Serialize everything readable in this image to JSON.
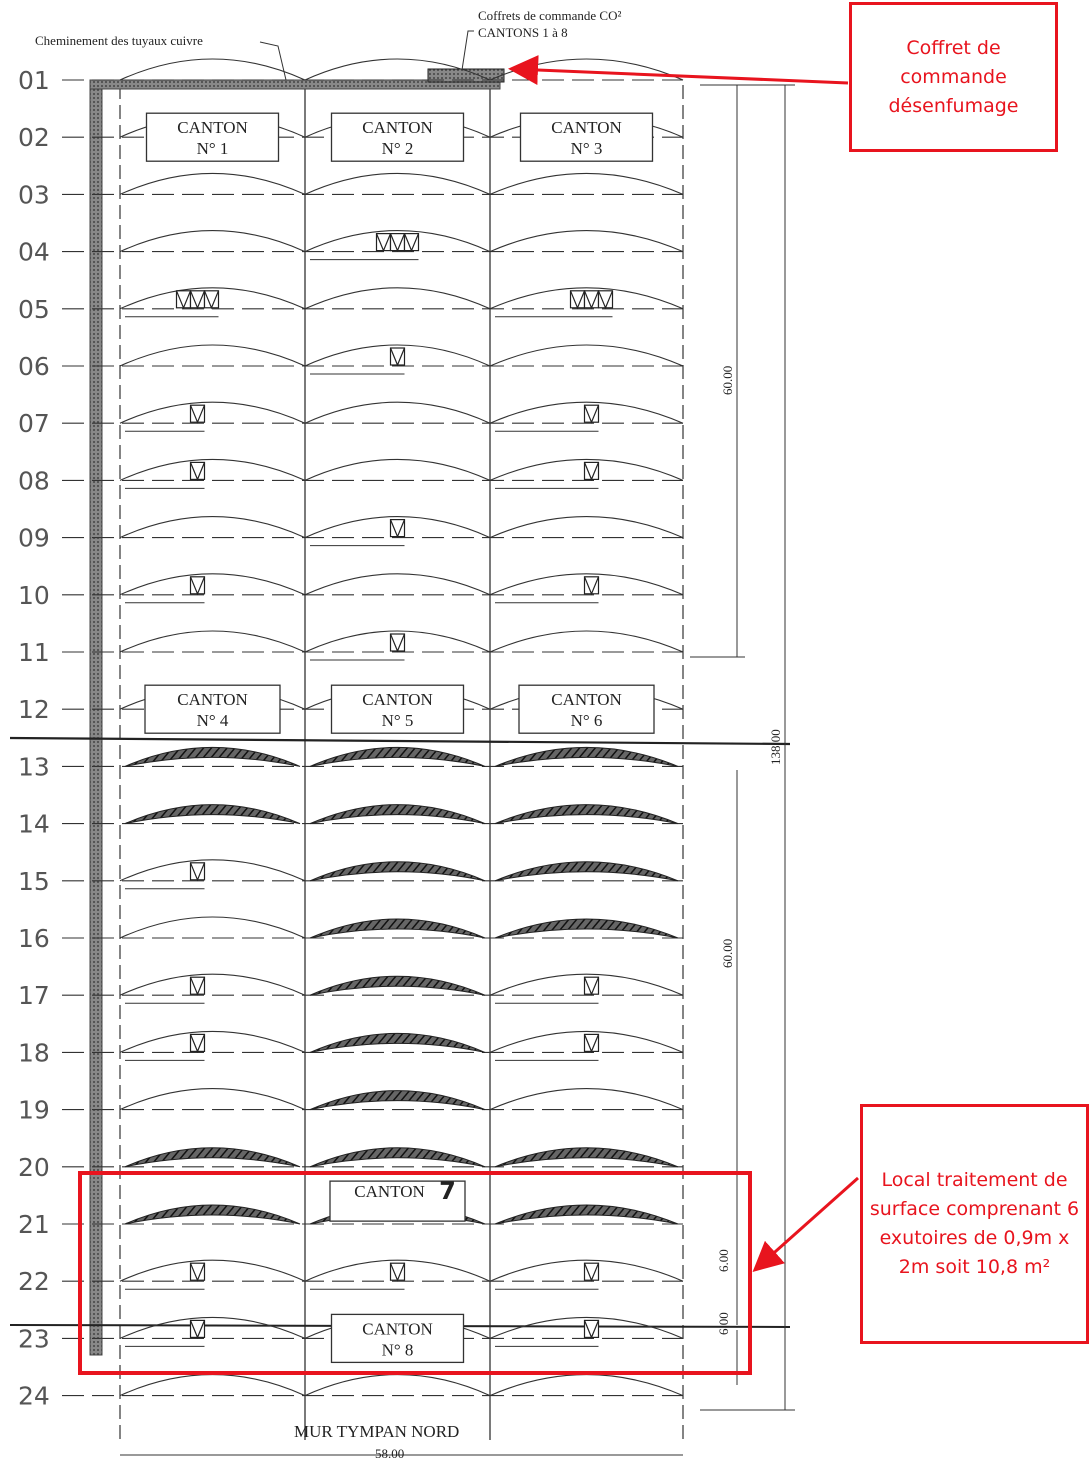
{
  "top_labels": {
    "copper_route": "Cheminement des tuyaux cuivre",
    "control_boxes_line1": "Coffrets de commande CO²",
    "control_boxes_line2": "CANTONS 1 à 8"
  },
  "rows": [
    "01",
    "02",
    "03",
    "04",
    "05",
    "06",
    "07",
    "08",
    "09",
    "10",
    "11",
    "12",
    "13",
    "14",
    "15",
    "16",
    "17",
    "18",
    "19",
    "20",
    "21",
    "22",
    "23",
    "24"
  ],
  "cantons": [
    {
      "title": "CANTON",
      "number": "N° 1"
    },
    {
      "title": "CANTON",
      "number": "N° 2"
    },
    {
      "title": "CANTON",
      "number": "N° 3"
    },
    {
      "title": "CANTON",
      "number": "N° 4"
    },
    {
      "title": "CANTON",
      "number": "N° 5"
    },
    {
      "title": "CANTON",
      "number": "N° 6"
    },
    {
      "title": "CANTON",
      "number": "7"
    },
    {
      "title": "CANTON",
      "number": "N° 8"
    }
  ],
  "dimensions": {
    "upper_span": "60.00",
    "total_length": "138.00",
    "lower_span": "60.00",
    "bay_a": "6.00",
    "bay_b": "6.00",
    "width": "58.00"
  },
  "bottom_label": "MUR TYMPAN NORD",
  "callouts": {
    "control_box": "Coffret de commande désenfumage",
    "surface_treatment": "Local traitement de surface comprenant 6 exutoires de 0,9m x 2m soit 10,8 m²"
  },
  "colors": {
    "annotation": "#e8141e",
    "ink": "#333333"
  }
}
